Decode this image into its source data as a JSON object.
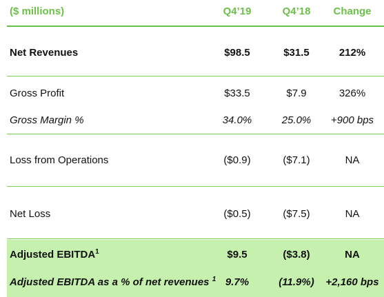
{
  "header": {
    "label": "($ millions)",
    "col1": "Q4’19",
    "col2": "Q4’18",
    "col3": "Change"
  },
  "rows": [
    {
      "label": "Net Revenues",
      "q419": "$98.5",
      "q418": "$31.5",
      "change": "212%"
    },
    {
      "label": "Gross Profit",
      "q419": "$33.5",
      "q418": "$7.9",
      "change": "326%"
    },
    {
      "label": "Gross Margin %",
      "q419": "34.0%",
      "q418": "25.0%",
      "change": "+900 bps"
    },
    {
      "label": "Loss from Operations",
      "q419": "($0.9)",
      "q418": "($7.1)",
      "change": "NA"
    },
    {
      "label": "Net Loss",
      "q419": "($0.5)",
      "q418": "($7.5)",
      "change": "NA"
    },
    {
      "label": "Adjusted EBITDA",
      "sup": "1",
      "q419": "$9.5",
      "q418": "($3.8)",
      "change": "NA"
    },
    {
      "label": "Adjusted EBITDA as a % of net revenues ",
      "sup": "1",
      "q419": "9.7%",
      "q418": "(11.9%)",
      "change": "+2,160 bps"
    }
  ],
  "colors": {
    "accent": "#6cc04a",
    "highlight_band": "#c6f0ad"
  }
}
